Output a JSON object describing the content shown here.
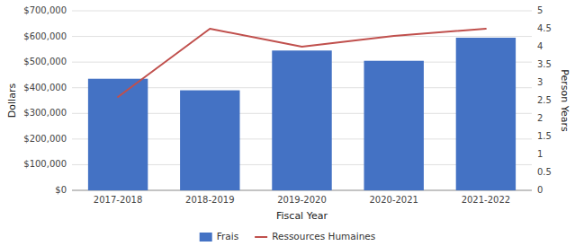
{
  "chart_data": {
    "type": "bar",
    "xlabel": "Fiscal Year",
    "ylabel": "Dollars",
    "y2label": "Person Years",
    "categories": [
      "2017-2018",
      "2018-2019",
      "2019-2020",
      "2020-2021",
      "2021-2022"
    ],
    "series": [
      {
        "name": "Frais",
        "color": "#4472C4",
        "values": [
          435000,
          390000,
          545000,
          505000,
          595000
        ]
      },
      {
        "name": "Ressources Humaines",
        "color": "#C0504D",
        "type": "line",
        "axis": "y2",
        "values": [
          2.6,
          4.5,
          4.0,
          4.3,
          4.5
        ]
      }
    ],
    "ylim": [
      0,
      700000
    ],
    "yticks": [
      {
        "value": 0,
        "label": "$0"
      },
      {
        "value": 100000,
        "label": "$100,000"
      },
      {
        "value": 200000,
        "label": "$200,000"
      },
      {
        "value": 300000,
        "label": "$300,000"
      },
      {
        "value": 400000,
        "label": "$400,000"
      },
      {
        "value": 500000,
        "label": "$500,000"
      },
      {
        "value": 600000,
        "label": "$600,000"
      },
      {
        "value": 700000,
        "label": "$700,000"
      }
    ],
    "y2lim": [
      0,
      5
    ],
    "y2ticks": [
      0,
      0.5,
      1,
      1.5,
      2,
      2.5,
      3,
      3.5,
      4,
      4.5,
      5
    ],
    "grid": true,
    "legend": "bottom"
  }
}
